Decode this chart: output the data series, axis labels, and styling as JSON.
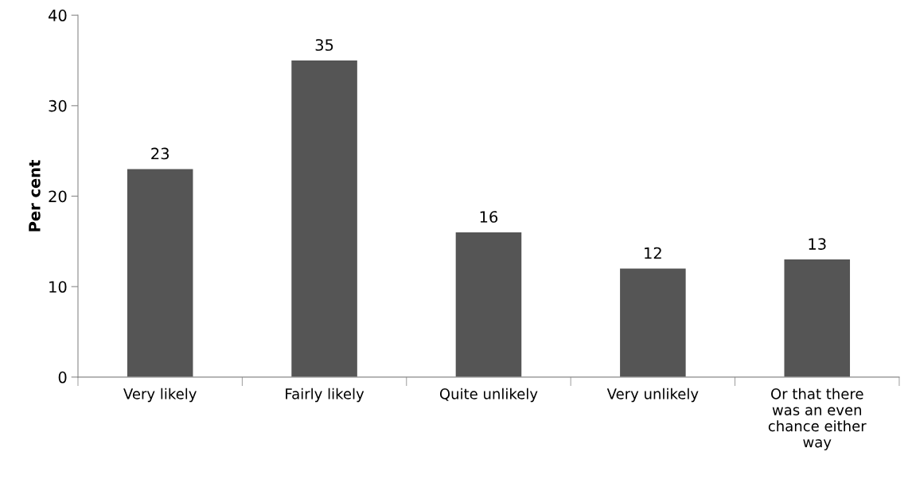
{
  "chart_data": {
    "type": "bar",
    "ylabel": "Per cent",
    "categories": [
      "Very likely",
      "Fairly likely",
      "Quite unlikely",
      "Very unlikely",
      "Or that there\nwas an even\nchance either\nway"
    ],
    "values": [
      23,
      35,
      16,
      12,
      13
    ],
    "color": "#555555",
    "ylim": [
      0,
      40
    ],
    "yticks": [
      0,
      10,
      20,
      30,
      40
    ],
    "grid": false,
    "data_labels": true
  }
}
